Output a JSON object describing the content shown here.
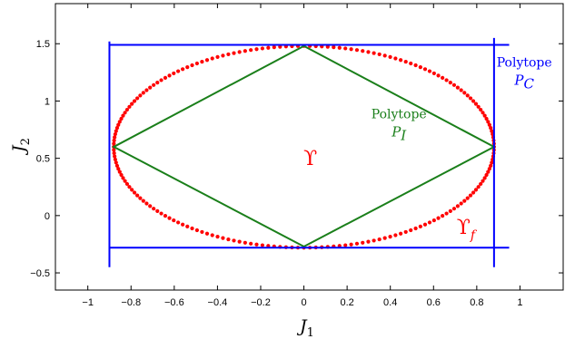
{
  "chart_data": {
    "type": "line",
    "title": "",
    "xlabel": {
      "symbol": "J",
      "subscript": "1"
    },
    "ylabel": {
      "symbol": "J",
      "subscript": "2"
    },
    "xlim": [
      -1.15,
      1.2
    ],
    "ylim": [
      -0.65,
      1.85
    ],
    "xticks": [
      -1,
      -0.8,
      -0.6,
      -0.4,
      -0.2,
      0,
      0.2,
      0.4,
      0.6,
      0.8,
      1
    ],
    "xtick_labels": [
      "−1",
      "−0.8",
      "−0.6",
      "−0.4",
      "−0.2",
      "0",
      "0.2",
      "0.4",
      "0.6",
      "0.8",
      "1"
    ],
    "yticks": [
      -0.5,
      0,
      0.5,
      1,
      1.5
    ],
    "ytick_labels": [
      "−0.5",
      "0",
      "0.5",
      "1",
      "1.5"
    ],
    "grid": false,
    "series": [
      {
        "kind": "dotted-ellipse",
        "color": "#ff0000",
        "center": [
          0,
          0.6
        ],
        "semi_axes": [
          0.88,
          0.88
        ],
        "samples": 200
      },
      {
        "kind": "polygon",
        "color": "#1a7f1a",
        "points": [
          [
            0,
            1.48
          ],
          [
            0.88,
            0.6
          ],
          [
            0,
            -0.27
          ],
          [
            -0.88,
            0.6
          ]
        ]
      },
      {
        "kind": "lines",
        "color": "#0000ff",
        "segments": [
          [
            [
              -0.9,
              1.49
            ],
            [
              0.95,
              1.49
            ]
          ],
          [
            [
              -0.9,
              -0.28
            ],
            [
              0.95,
              -0.28
            ]
          ],
          [
            [
              -0.9,
              1.52
            ],
            [
              -0.9,
              -0.45
            ]
          ],
          [
            [
              0.88,
              1.55
            ],
            [
              0.88,
              -0.45
            ]
          ]
        ]
      }
    ],
    "annotations": [
      {
        "id": "polytope-pc",
        "line1": "Polytope",
        "symbol": "P",
        "subscript": "C",
        "color": "#0000ff",
        "x": 1.02,
        "y": 1.3
      },
      {
        "id": "polytope-pi",
        "line1": "Polytope",
        "symbol": "P",
        "subscript": "I",
        "color": "#1a7f1a",
        "x": 0.44,
        "y": 0.85
      },
      {
        "id": "upsilon",
        "symbol": "ϒ",
        "subscript": "",
        "color": "#ff0000",
        "x": 0.03,
        "y": 0.44
      },
      {
        "id": "upsilon-f",
        "symbol": "ϒ",
        "subscript": "f",
        "color": "#ff0000",
        "x": 0.75,
        "y": -0.16
      }
    ]
  }
}
